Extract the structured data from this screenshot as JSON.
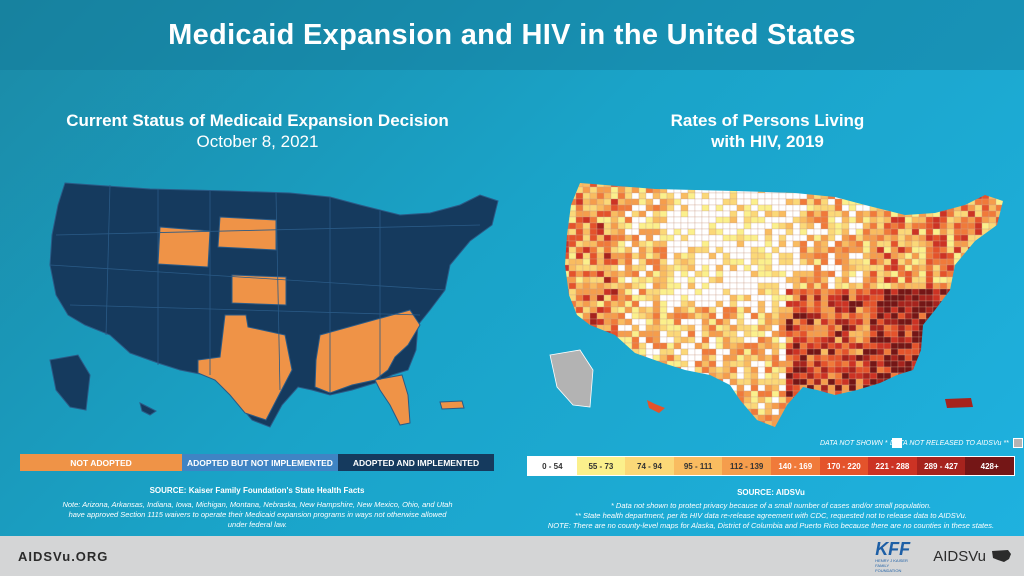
{
  "title": "Medicaid Expansion and HIV in the United States",
  "left_panel": {
    "title": "Current Status of Medicaid Expansion Decision",
    "date": "October 8, 2021",
    "legend": [
      {
        "label": "NOT ADOPTED",
        "color": "#ef9347"
      },
      {
        "label": "ADOPTED BUT NOT IMPLEMENTED",
        "color": "#3f84c4"
      },
      {
        "label": "ADOPTED AND IMPLEMENTED",
        "color": "#153a5e"
      }
    ],
    "source": "SOURCE: Kaiser Family Foundation's State Health Facts",
    "note": "Note: Arizona, Arkansas, Indiana, Iowa, Michigan, Montana, Nebraska, New Hampshire, New Mexico, Ohio, and Utah have approved Section 1115 waivers to operate their Medicaid expansion programs in ways not otherwise allowed under federal law."
  },
  "right_panel": {
    "title_line1": "Rates of Persons Living",
    "title_line2": "with HIV, 2019",
    "data_not_shown": "DATA NOT SHOWN *",
    "data_not_released": "DATA NOT RELEASED TO AIDSVu **",
    "legend": [
      {
        "label": "0 - 54",
        "color": "#ffffff",
        "text": "#333333"
      },
      {
        "label": "55 - 73",
        "color": "#fbf08c",
        "text": "#333333"
      },
      {
        "label": "74 - 94",
        "color": "#fbd878",
        "text": "#333333"
      },
      {
        "label": "95 - 111",
        "color": "#f9bc60",
        "text": "#333333"
      },
      {
        "label": "112 - 139",
        "color": "#f59d4c",
        "text": "#333333"
      },
      {
        "label": "140 - 169",
        "color": "#f07a3a",
        "text": "#ffffff"
      },
      {
        "label": "170 - 220",
        "color": "#e4532b",
        "text": "#ffffff"
      },
      {
        "label": "221 - 288",
        "color": "#cc3324",
        "text": "#ffffff"
      },
      {
        "label": "289 - 427",
        "color": "#a6231d",
        "text": "#ffffff"
      },
      {
        "label": "428+",
        "color": "#741616",
        "text": "#ffffff"
      }
    ],
    "source": "SOURCE: AIDSVu",
    "note1": "* Data not shown to protect privacy because of a small number of cases and/or small population.",
    "note2": "** State health department, per its HIV data re-release agreement with CDC, requested not to release data to AIDSVu.",
    "note3": "NOTE: There are no county-level maps for Alaska, District of Columbia and Puerto Rico because there are no counties in these states."
  },
  "footer": {
    "url": "AIDSVu.ORG",
    "kff_logo": "KFF",
    "kff_sub": "HENRY J KAISER FAMILY FOUNDATION",
    "aidsvu_logo": "AIDSVu"
  },
  "colors": {
    "not_adopted": "#ef9347",
    "implemented": "#153a5e",
    "not_shown": "#ffffff",
    "not_released": "#b3b3b3"
  }
}
